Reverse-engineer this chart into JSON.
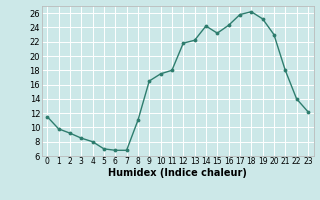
{
  "x": [
    0,
    1,
    2,
    3,
    4,
    5,
    6,
    7,
    8,
    9,
    10,
    11,
    12,
    13,
    14,
    15,
    16,
    17,
    18,
    19,
    20,
    21,
    22,
    23
  ],
  "y": [
    11.5,
    9.8,
    9.2,
    8.5,
    8.0,
    7.0,
    6.8,
    6.8,
    11.0,
    16.5,
    17.5,
    18.0,
    21.8,
    22.2,
    24.2,
    23.2,
    24.3,
    25.8,
    26.2,
    25.2,
    23.0,
    18.0,
    14.0,
    12.2
  ],
  "xlabel": "Humidex (Indice chaleur)",
  "xlim": [
    -0.5,
    23.5
  ],
  "ylim": [
    6,
    27
  ],
  "yticks": [
    6,
    8,
    10,
    12,
    14,
    16,
    18,
    20,
    22,
    24,
    26
  ],
  "xticks": [
    0,
    1,
    2,
    3,
    4,
    5,
    6,
    7,
    8,
    9,
    10,
    11,
    12,
    13,
    14,
    15,
    16,
    17,
    18,
    19,
    20,
    21,
    22,
    23
  ],
  "line_color": "#2e7d6e",
  "marker_color": "#2e7d6e",
  "bg_color": "#cce8e8",
  "grid_color": "#ffffff",
  "axis_color": "#bbbbbb",
  "xlabel_fontsize": 7,
  "tick_fontsize": 5.5,
  "ytick_fontsize": 6
}
